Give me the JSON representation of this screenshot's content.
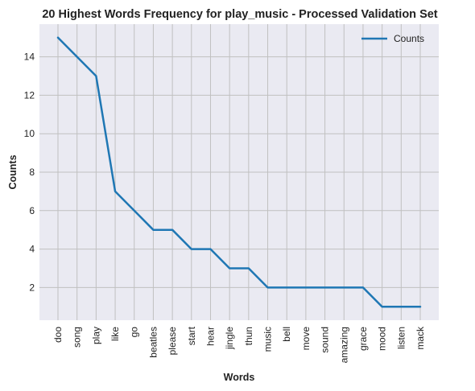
{
  "chart_data": {
    "type": "line",
    "title": "20 Highest Words Frequency for play_music - Processed Validation Set",
    "xlabel": "Words",
    "ylabel": "Counts",
    "categories": [
      "doo",
      "song",
      "play",
      "like",
      "go",
      "beatles",
      "please",
      "start",
      "hear",
      "jingle",
      "thun",
      "music",
      "bell",
      "move",
      "sound",
      "amazing",
      "grace",
      "mood",
      "listen",
      "mack"
    ],
    "series": [
      {
        "name": "Counts",
        "values": [
          15,
          14,
          13,
          7,
          6,
          5,
          5,
          4,
          4,
          3,
          3,
          2,
          2,
          2,
          2,
          2,
          2,
          1,
          1,
          1
        ]
      }
    ],
    "ylim": [
      0.3,
      15.7
    ],
    "yticks": [
      2,
      4,
      6,
      8,
      10,
      12,
      14
    ],
    "grid": true,
    "legend_position": "top-right",
    "colors": {
      "line": "#1f77b4",
      "background": "#eaeaf2",
      "grid": "#c0c0c0"
    }
  }
}
